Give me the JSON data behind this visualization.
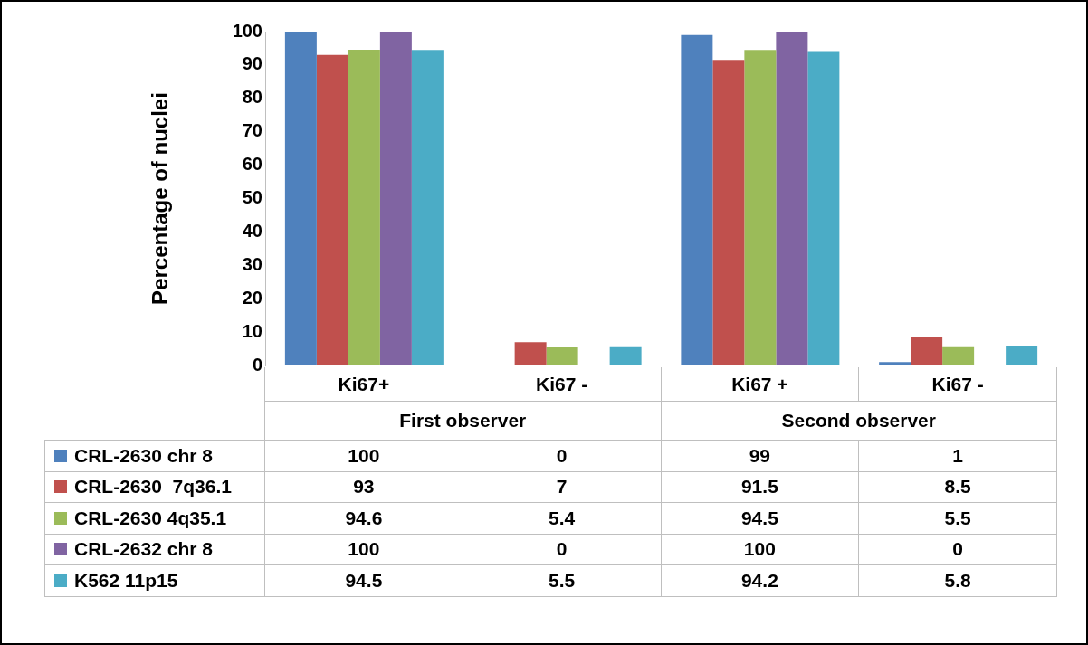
{
  "chart_data": {
    "type": "bar",
    "ylabel": "Percentage of nuclei",
    "categories": [
      "Ki67+",
      "Ki67 -",
      "Ki67 +",
      "Ki67 -"
    ],
    "annotations": [
      "First observer",
      "Second observer"
    ],
    "ylim": [
      0,
      100
    ],
    "yticks": [
      0,
      10,
      20,
      30,
      40,
      50,
      60,
      70,
      80,
      90,
      100
    ],
    "grid": false,
    "legend": "bottom",
    "data_labels": true,
    "series": [
      {
        "name": "CRL-2630 chr 8",
        "color": "#4f81bd",
        "values": [
          100,
          0,
          99,
          1
        ]
      },
      {
        "name": "CRL-2630  7q36.1",
        "color": "#c0504d",
        "values": [
          93,
          7,
          91.5,
          8.5
        ]
      },
      {
        "name": "CRL-2630 4q35.1",
        "color": "#9bbb59",
        "values": [
          94.6,
          5.4,
          94.5,
          5.5
        ]
      },
      {
        "name": "CRL-2632 chr 8",
        "color": "#8064a2",
        "values": [
          100,
          0,
          100,
          0
        ]
      },
      {
        "name": "K562 11p15",
        "color": "#4bacc6",
        "values": [
          94.5,
          5.5,
          94.2,
          5.8
        ]
      }
    ]
  }
}
